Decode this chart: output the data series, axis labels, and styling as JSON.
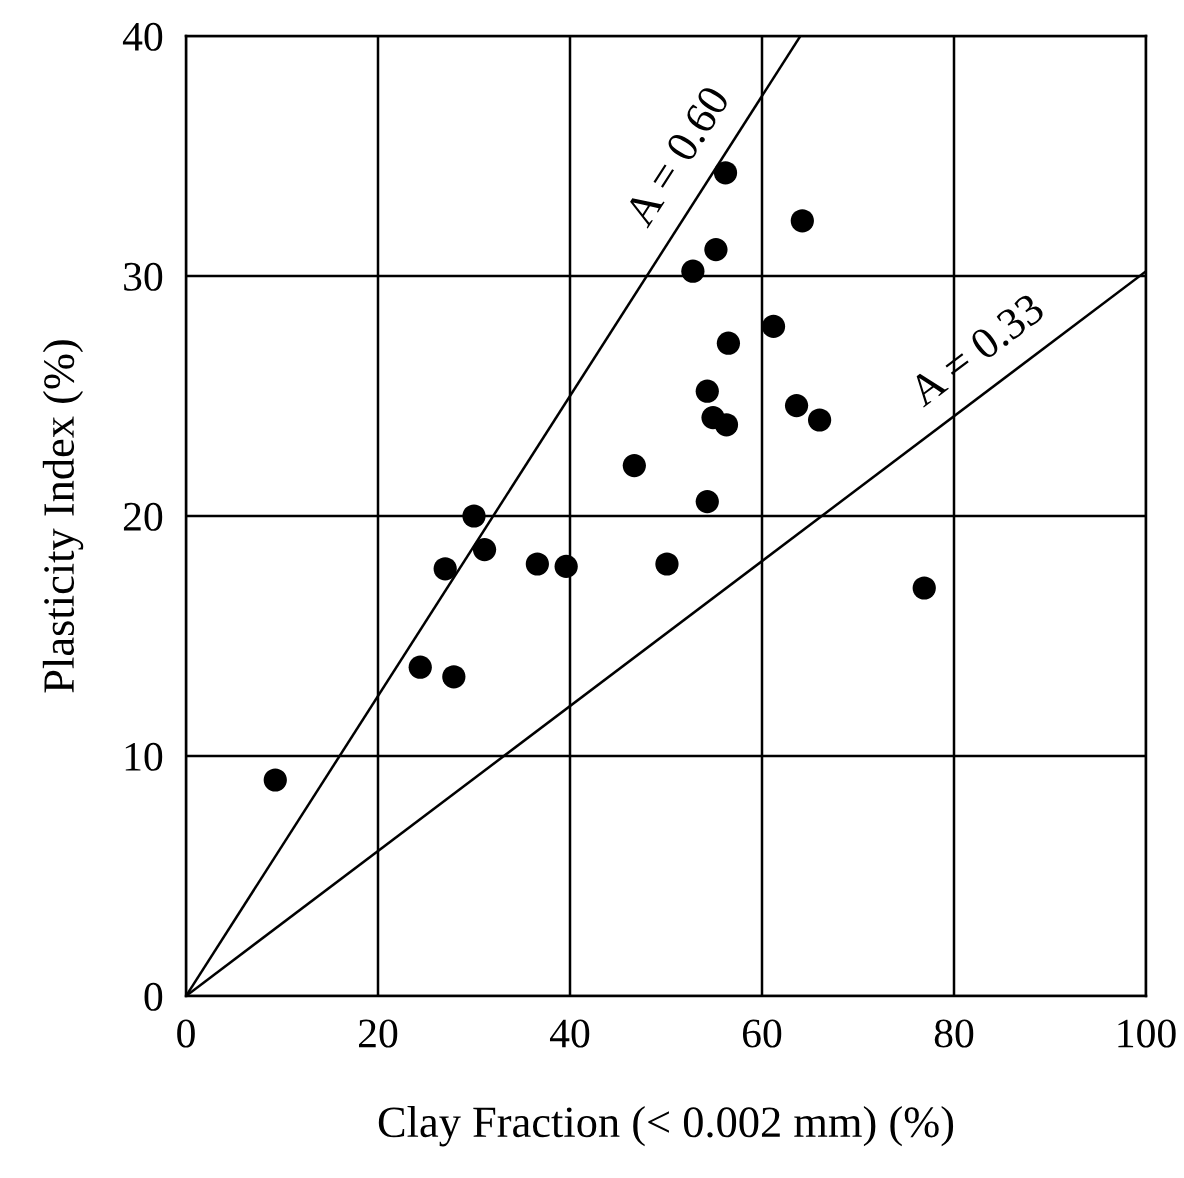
{
  "chart_data": {
    "type": "scatter",
    "xlabel": "Clay Fraction (< 0.002 mm) (%)",
    "ylabel": "Plasticity Index (%)",
    "xlim": [
      0,
      100
    ],
    "ylim": [
      0,
      40
    ],
    "xticks": [
      0,
      20,
      40,
      60,
      80,
      100
    ],
    "yticks": [
      0,
      10,
      20,
      30,
      40
    ],
    "grid": true,
    "series": [
      {
        "marker": "circle",
        "color": "#000000",
        "x": [
          9.3,
          24.4,
          27.9,
          27.0,
          30.0,
          31.1,
          36.6,
          39.6,
          50.1,
          46.7,
          54.3,
          54.3,
          54.9,
          56.3,
          56.5,
          52.8,
          55.2,
          56.2,
          64.2,
          61.2,
          63.6,
          66.0,
          76.9
        ],
        "values": [
          9.0,
          13.7,
          13.3,
          17.8,
          20.0,
          18.6,
          18.0,
          17.9,
          18.0,
          22.1,
          20.6,
          25.2,
          24.1,
          23.8,
          27.2,
          30.2,
          31.1,
          34.3,
          32.3,
          27.9,
          24.6,
          24.0,
          17.0
        ]
      },
      {
        "type": "line",
        "name": "A = 0.60",
        "color": "#000000",
        "x": [
          0,
          64
        ],
        "values": [
          0,
          40
        ]
      },
      {
        "type": "line",
        "name": "A = 0.33",
        "color": "#000000",
        "x": [
          0,
          100
        ],
        "values": [
          0,
          30.2
        ]
      }
    ]
  }
}
